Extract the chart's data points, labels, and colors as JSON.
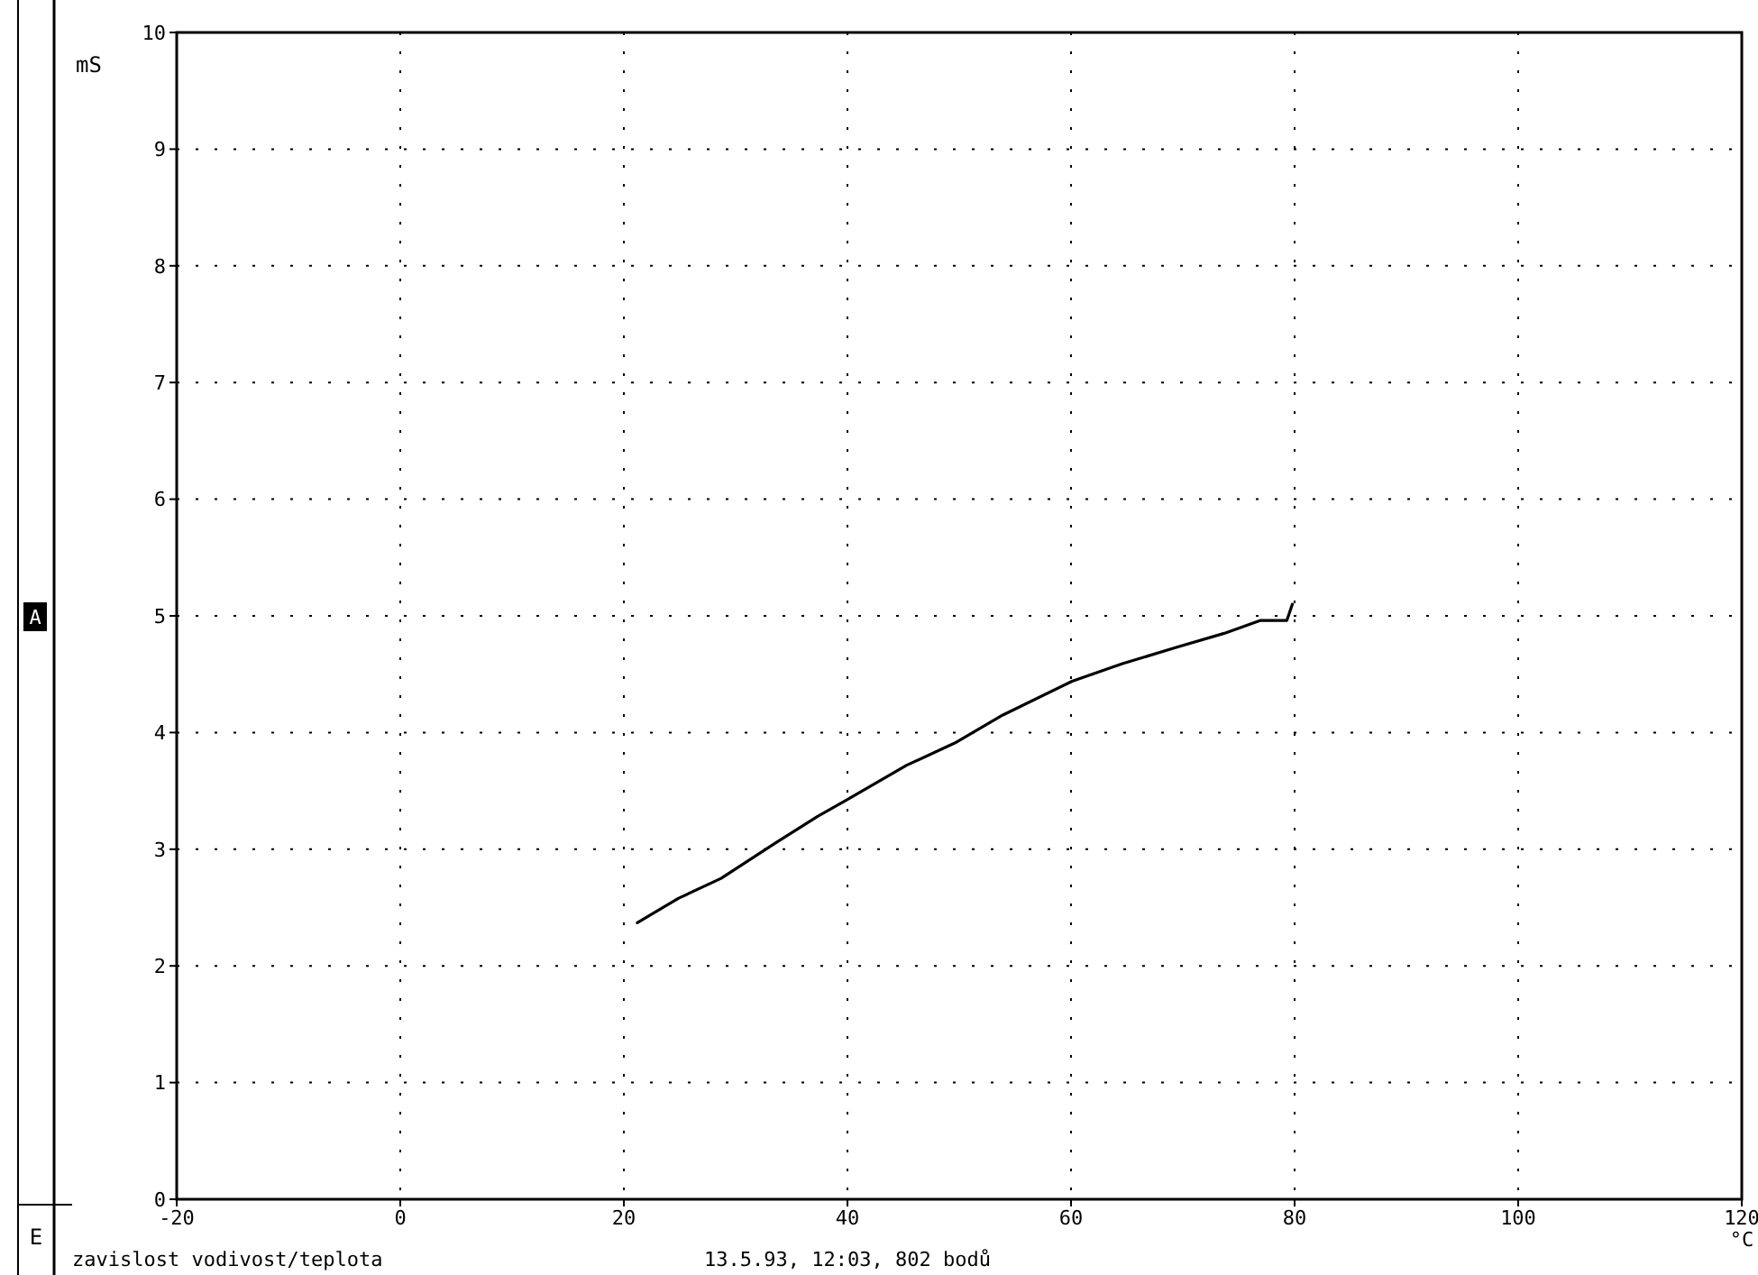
{
  "chart_data": {
    "type": "line",
    "xlabel": "°C",
    "ylabel": "mS",
    "x": [
      21.2,
      24.9,
      28.7,
      33.5,
      37.3,
      39.9,
      45.3,
      49.6,
      53.9,
      60.1,
      64.6,
      69.4,
      73.7,
      76.9,
      79.3,
      79.8
    ],
    "series": [
      {
        "color": "#000000",
        "values": [
          2.37,
          2.58,
          2.75,
          3.05,
          3.28,
          3.42,
          3.72,
          3.91,
          4.15,
          4.44,
          4.59,
          4.73,
          4.85,
          4.96,
          4.96,
          5.1
        ]
      }
    ],
    "xlim": [
      -20,
      120
    ],
    "xticks": [
      -20,
      0,
      20,
      40,
      60,
      80,
      100,
      120
    ],
    "ylim": [
      0,
      10
    ],
    "yticks": [
      0,
      1,
      2,
      3,
      4,
      5,
      6,
      7,
      8,
      9,
      10
    ],
    "grid": true,
    "line_style": "solid",
    "marker": "none",
    "annotations": [
      "A",
      "E",
      "zavislost vodivost/teplota",
      "13.5.93, 12:03, 802 bodů"
    ]
  }
}
